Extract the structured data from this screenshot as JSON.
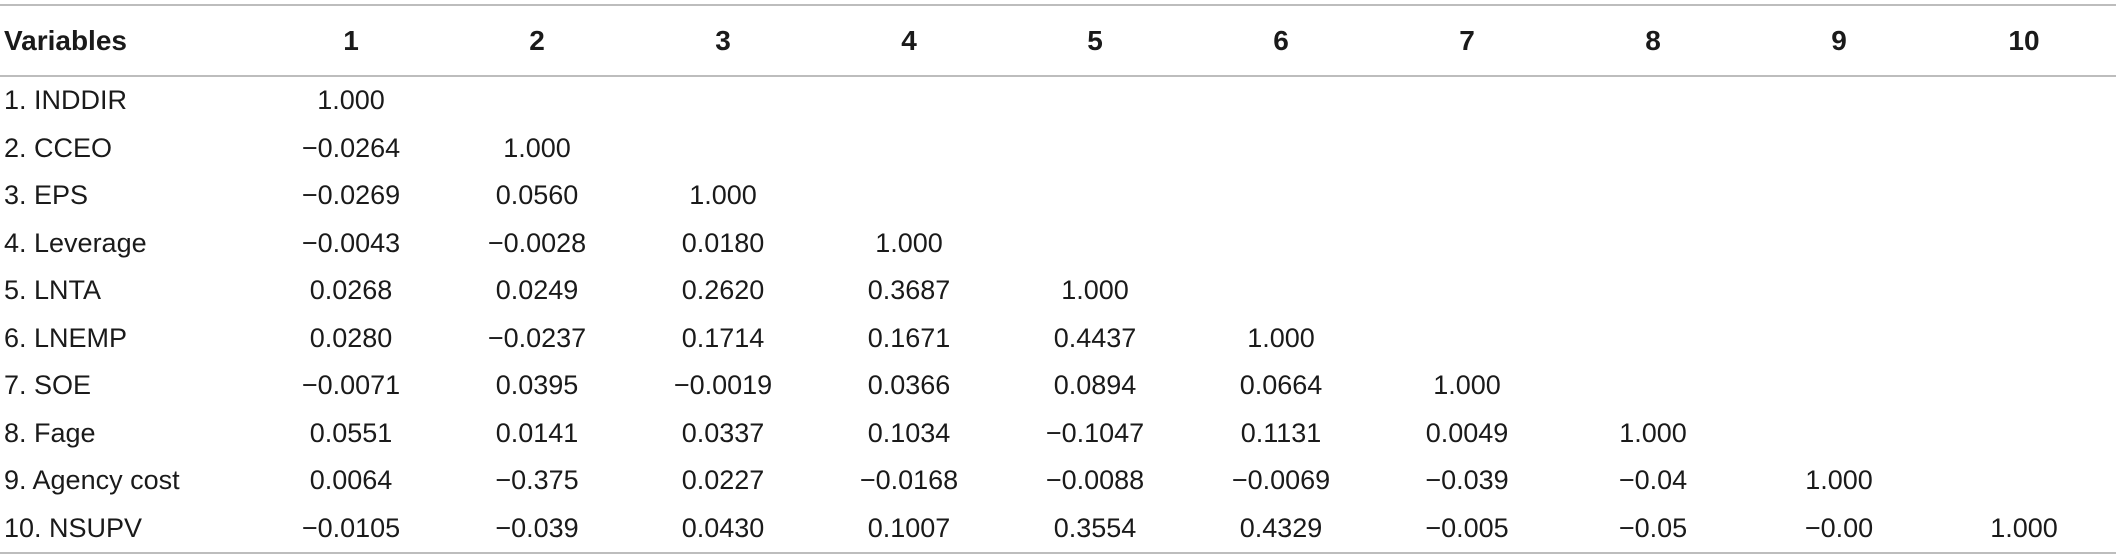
{
  "table": {
    "header": [
      "Variables",
      "1",
      "2",
      "3",
      "4",
      "5",
      "6",
      "7",
      "8",
      "9",
      "10"
    ],
    "rows": [
      {
        "variable": "1. INDDIR",
        "values": [
          "1.000",
          "",
          "",
          "",
          "",
          "",
          "",
          "",
          "",
          ""
        ]
      },
      {
        "variable": "2. CCEO",
        "values": [
          "−0.0264",
          "1.000",
          "",
          "",
          "",
          "",
          "",
          "",
          "",
          ""
        ]
      },
      {
        "variable": "3. EPS",
        "values": [
          "−0.0269",
          "0.0560",
          "1.000",
          "",
          "",
          "",
          "",
          "",
          "",
          ""
        ]
      },
      {
        "variable": "4. Leverage",
        "values": [
          "−0.0043",
          "−0.0028",
          "0.0180",
          "1.000",
          "",
          "",
          "",
          "",
          "",
          ""
        ]
      },
      {
        "variable": "5. LNTA",
        "values": [
          "0.0268",
          "0.0249",
          "0.2620",
          "0.3687",
          "1.000",
          "",
          "",
          "",
          "",
          ""
        ]
      },
      {
        "variable": "6. LNEMP",
        "values": [
          "0.0280",
          "−0.0237",
          "0.1714",
          "0.1671",
          "0.4437",
          "1.000",
          "",
          "",
          "",
          ""
        ]
      },
      {
        "variable": "7. SOE",
        "values": [
          "−0.0071",
          "0.0395",
          "−0.0019",
          "0.0366",
          "0.0894",
          "0.0664",
          "1.000",
          "",
          "",
          ""
        ]
      },
      {
        "variable": "8. Fage",
        "values": [
          "0.0551",
          "0.0141",
          "0.0337",
          "0.1034",
          "−0.1047",
          "0.1131",
          "0.0049",
          "1.000",
          "",
          ""
        ]
      },
      {
        "variable": "9. Agency cost",
        "values": [
          "0.0064",
          "−0.375",
          "0.0227",
          "−0.0168",
          "−0.0088",
          "−0.0069",
          "−0.039",
          "−0.04",
          "1.000",
          ""
        ]
      },
      {
        "variable": "10. NSUPV",
        "values": [
          "−0.0105",
          "−0.039",
          "0.0430",
          "0.1007",
          "0.3554",
          "0.4329",
          "−0.005",
          "−0.05",
          "−0.00",
          "1.000"
        ]
      }
    ]
  }
}
